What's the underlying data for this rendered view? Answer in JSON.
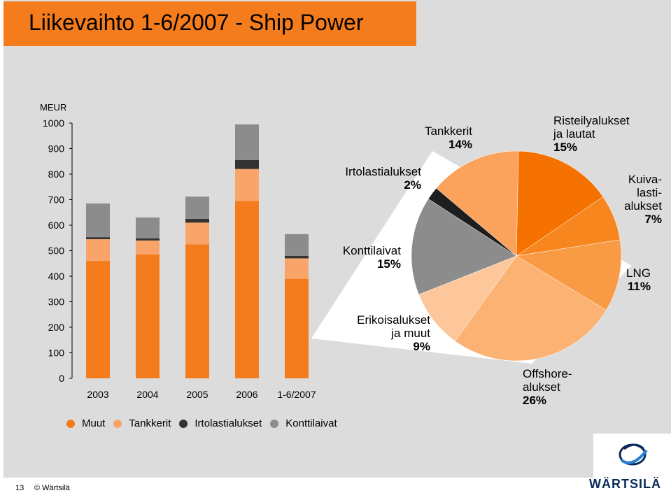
{
  "title": "Liikevaihto 1-6/2007 - Ship Power",
  "chart_data": [
    {
      "type": "bar",
      "stacked": true,
      "ylabel": "MEUR",
      "ylim": [
        0,
        1000
      ],
      "yticks": [
        0,
        100,
        200,
        300,
        400,
        500,
        600,
        700,
        800,
        900,
        1000
      ],
      "categories": [
        "2003",
        "2004",
        "2005",
        "2006",
        "1-6/2007"
      ],
      "series": [
        {
          "name": "Muut",
          "color": "#f57c1c",
          "values": [
            460,
            485,
            525,
            695,
            390
          ]
        },
        {
          "name": "Tankkerit",
          "color": "#f9a56a",
          "values": [
            85,
            55,
            85,
            125,
            80
          ]
        },
        {
          "name": "Irtolastialukset",
          "color": "#333333",
          "values": [
            8,
            8,
            15,
            35,
            10
          ]
        },
        {
          "name": "Konttilaivat",
          "color": "#8c8c8c",
          "values": [
            132,
            82,
            87,
            140,
            85
          ]
        }
      ],
      "legend": "bottom"
    },
    {
      "type": "pie",
      "slices": [
        {
          "label": "Risteilyalukset ja lautat",
          "value": 15,
          "color": "#f57200",
          "lines": [
            "Risteilyalukset",
            "ja lautat"
          ]
        },
        {
          "label": "Kuivalastialukset",
          "value": 7,
          "color": "#f7861f",
          "lines": [
            "Kuiva-",
            "lasti-",
            "alukset"
          ]
        },
        {
          "label": "LNG",
          "value": 11,
          "color": "#f99a45",
          "lines": [
            "LNG"
          ]
        },
        {
          "label": "Offshorealukset",
          "value": 26,
          "color": "#fbb272",
          "lines": [
            "Offshore-",
            "alukset"
          ]
        },
        {
          "label": "Erikoisalukset ja muut",
          "value": 9,
          "color": "#fdc79b",
          "lines": [
            "Erikoisalukset",
            "ja muut"
          ]
        },
        {
          "label": "Konttilaivat",
          "value": 15,
          "color": "#8c8c8c",
          "lines": [
            "Konttilaivat"
          ]
        },
        {
          "label": "Irtolastialukset",
          "value": 2,
          "color": "#1e1e1e",
          "lines": [
            "Irtolastialukset"
          ]
        },
        {
          "label": "Tankkerit",
          "value": 14,
          "color": "#fba35d",
          "lines": [
            "Tankkerit"
          ]
        }
      ]
    }
  ],
  "footer": {
    "slide_number": "13",
    "copyright": "© Wärtsilä"
  },
  "logo": {
    "text": "WÄRTSILÄ"
  }
}
